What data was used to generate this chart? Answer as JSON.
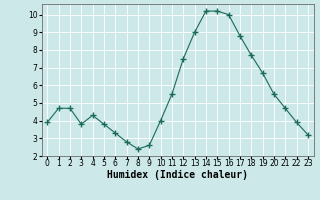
{
  "x": [
    0,
    1,
    2,
    3,
    4,
    5,
    6,
    7,
    8,
    9,
    10,
    11,
    12,
    13,
    14,
    15,
    16,
    17,
    18,
    19,
    20,
    21,
    22,
    23
  ],
  "y": [
    3.9,
    4.7,
    4.7,
    3.8,
    4.3,
    3.8,
    3.3,
    2.8,
    2.4,
    2.6,
    4.0,
    5.5,
    7.5,
    9.0,
    10.2,
    10.2,
    10.0,
    8.8,
    7.7,
    6.7,
    5.5,
    4.7,
    3.9,
    3.2
  ],
  "xlabel": "Humidex (Indice chaleur)",
  "ylim": [
    2,
    10.6
  ],
  "xlim": [
    -0.5,
    23.5
  ],
  "yticks": [
    2,
    3,
    4,
    5,
    6,
    7,
    8,
    9,
    10
  ],
  "xtick_labels": [
    "0",
    "1",
    "2",
    "3",
    "4",
    "5",
    "6",
    "7",
    "8",
    "9",
    "10",
    "11",
    "12",
    "13",
    "14",
    "15",
    "16",
    "17",
    "18",
    "19",
    "20",
    "21",
    "22",
    "23"
  ],
  "line_color": "#1a6b5a",
  "marker": "+",
  "marker_size": 4.0,
  "marker_lw": 1.0,
  "bg_color": "#cce8e8",
  "grid_color": "#ffffff",
  "xlabel_fontsize": 7,
  "tick_fontsize": 5.5
}
